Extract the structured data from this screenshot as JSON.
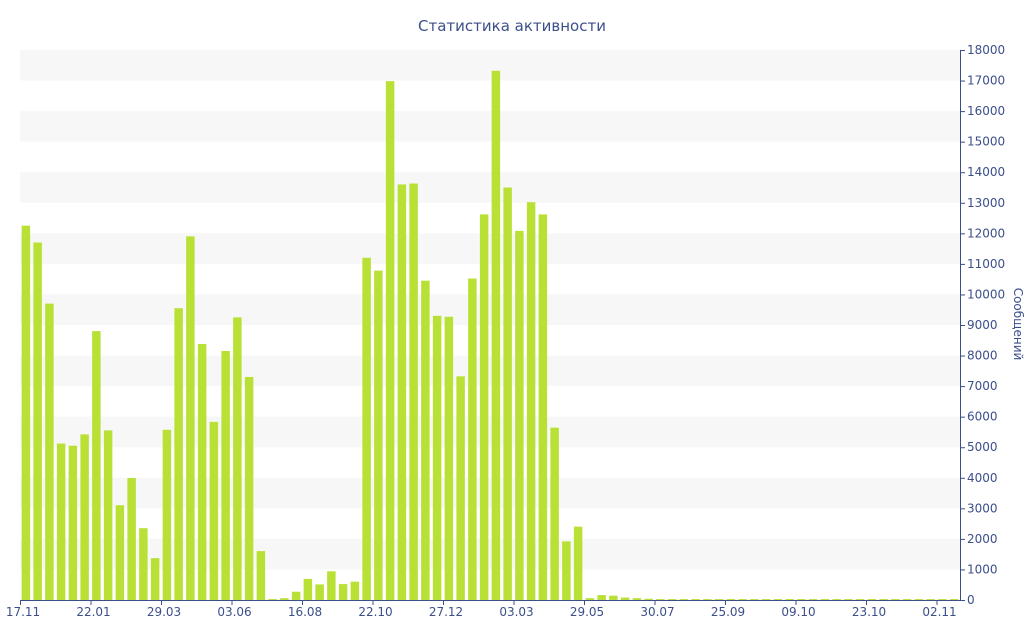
{
  "chart_data": {
    "type": "bar",
    "title": "Статистика активности",
    "xlabel": "",
    "ylabel": "Сообщений",
    "y_axis_side": "right",
    "ylim": [
      0,
      18000
    ],
    "y_ticks": [
      0,
      1000,
      2000,
      3000,
      4000,
      5000,
      6000,
      7000,
      8000,
      9000,
      10000,
      11000,
      12000,
      13000,
      14000,
      15000,
      16000,
      17000,
      18000
    ],
    "x_tick_labels": [
      {
        "label": "17.11",
        "index": 0
      },
      {
        "label": "22.01",
        "index": 6
      },
      {
        "label": "29.03",
        "index": 12
      },
      {
        "label": "03.06",
        "index": 18
      },
      {
        "label": "16.08",
        "index": 24
      },
      {
        "label": "22.10",
        "index": 30
      },
      {
        "label": "27.12",
        "index": 36
      },
      {
        "label": "03.03",
        "index": 42
      },
      {
        "label": "29.05",
        "index": 48
      },
      {
        "label": "30.07",
        "index": 54
      },
      {
        "label": "25.09",
        "index": 60
      },
      {
        "label": "09.10",
        "index": 66
      },
      {
        "label": "23.10",
        "index": 72
      },
      {
        "label": "02.11",
        "index": 78
      }
    ],
    "grid": true,
    "bar_color": "#b8e035",
    "band_color": "#f7f7f7",
    "text_color": "#3c4f8a",
    "series": [
      {
        "values": [
          12250,
          11700,
          9700,
          5120,
          5050,
          5420,
          8800,
          5550,
          3100,
          3990,
          2350,
          1370,
          5570,
          9550,
          11900,
          8380,
          5830,
          8150,
          9250,
          7300,
          1600,
          30,
          60,
          270,
          690,
          510,
          940,
          520,
          600,
          11200,
          10780,
          16980,
          13600,
          13630,
          10450,
          9300,
          9270,
          7320,
          10520,
          12620,
          17320,
          13500,
          12080,
          13020,
          12620,
          5640,
          1920,
          2400,
          60,
          160,
          140,
          80,
          60,
          40,
          30,
          30,
          30,
          30,
          30,
          30,
          30,
          30,
          30,
          30,
          30,
          30,
          30,
          30,
          30,
          30,
          30,
          30,
          30,
          30,
          30,
          30,
          30,
          30,
          30,
          30
        ]
      }
    ]
  }
}
